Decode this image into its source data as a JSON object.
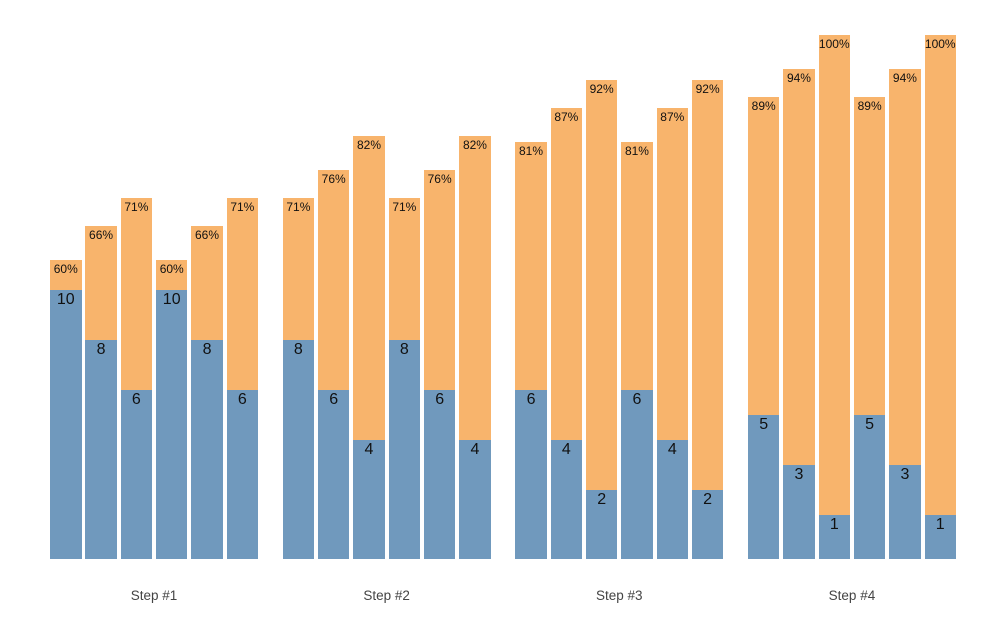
{
  "chart_data": {
    "type": "bar",
    "variant": "grouped-stacked-columns",
    "title": "",
    "xlabel": "",
    "ylabel": "",
    "axes_visible": false,
    "gridlines": false,
    "legend": "none",
    "background_color": "#ffffff",
    "colors": {
      "count_segment": "#7099bd",
      "percent_segment": "#f8b46c",
      "bar_label_text": "#111111",
      "group_label_text": "#444444"
    },
    "groups": [
      {
        "label": "Step #1",
        "bars": [
          {
            "count": 10,
            "count_label": "10",
            "percent": 60,
            "percent_label": "60%"
          },
          {
            "count": 8,
            "count_label": "8",
            "percent": 66,
            "percent_label": "66%"
          },
          {
            "count": 6,
            "count_label": "6",
            "percent": 71,
            "percent_label": "71%"
          },
          {
            "count": 10,
            "count_label": "10",
            "percent": 60,
            "percent_label": "60%"
          },
          {
            "count": 8,
            "count_label": "8",
            "percent": 66,
            "percent_label": "66%"
          },
          {
            "count": 6,
            "count_label": "6",
            "percent": 71,
            "percent_label": "71%"
          }
        ]
      },
      {
        "label": "Step #2",
        "bars": [
          {
            "count": 8,
            "count_label": "8",
            "percent": 71,
            "percent_label": "71%"
          },
          {
            "count": 6,
            "count_label": "6",
            "percent": 76,
            "percent_label": "76%"
          },
          {
            "count": 4,
            "count_label": "4",
            "percent": 82,
            "percent_label": "82%"
          },
          {
            "count": 8,
            "count_label": "8",
            "percent": 71,
            "percent_label": "71%"
          },
          {
            "count": 6,
            "count_label": "6",
            "percent": 76,
            "percent_label": "76%"
          },
          {
            "count": 4,
            "count_label": "4",
            "percent": 82,
            "percent_label": "82%"
          }
        ]
      },
      {
        "label": "Step #3",
        "bars": [
          {
            "count": 6,
            "count_label": "6",
            "percent": 81,
            "percent_label": "81%"
          },
          {
            "count": 4,
            "count_label": "4",
            "percent": 87,
            "percent_label": "87%"
          },
          {
            "count": 2,
            "count_label": "2",
            "percent": 92,
            "percent_label": "92%"
          },
          {
            "count": 6,
            "count_label": "6",
            "percent": 81,
            "percent_label": "81%"
          },
          {
            "count": 4,
            "count_label": "4",
            "percent": 87,
            "percent_label": "87%"
          },
          {
            "count": 2,
            "count_label": "2",
            "percent": 92,
            "percent_label": "92%"
          }
        ]
      },
      {
        "label": "Step #4",
        "bars": [
          {
            "count": 5,
            "count_label": "5",
            "percent": 89,
            "percent_label": "89%"
          },
          {
            "count": 3,
            "count_label": "3",
            "percent": 94,
            "percent_label": "94%"
          },
          {
            "count": 1,
            "count_label": "1",
            "percent": 100,
            "percent_label": "100%"
          },
          {
            "count": 5,
            "count_label": "5",
            "percent": 89,
            "percent_label": "89%"
          },
          {
            "count": 3,
            "count_label": "3",
            "percent": 94,
            "percent_label": "94%"
          },
          {
            "count": 1,
            "count_label": "1",
            "percent": 100,
            "percent_label": "100%"
          }
        ]
      }
    ]
  }
}
